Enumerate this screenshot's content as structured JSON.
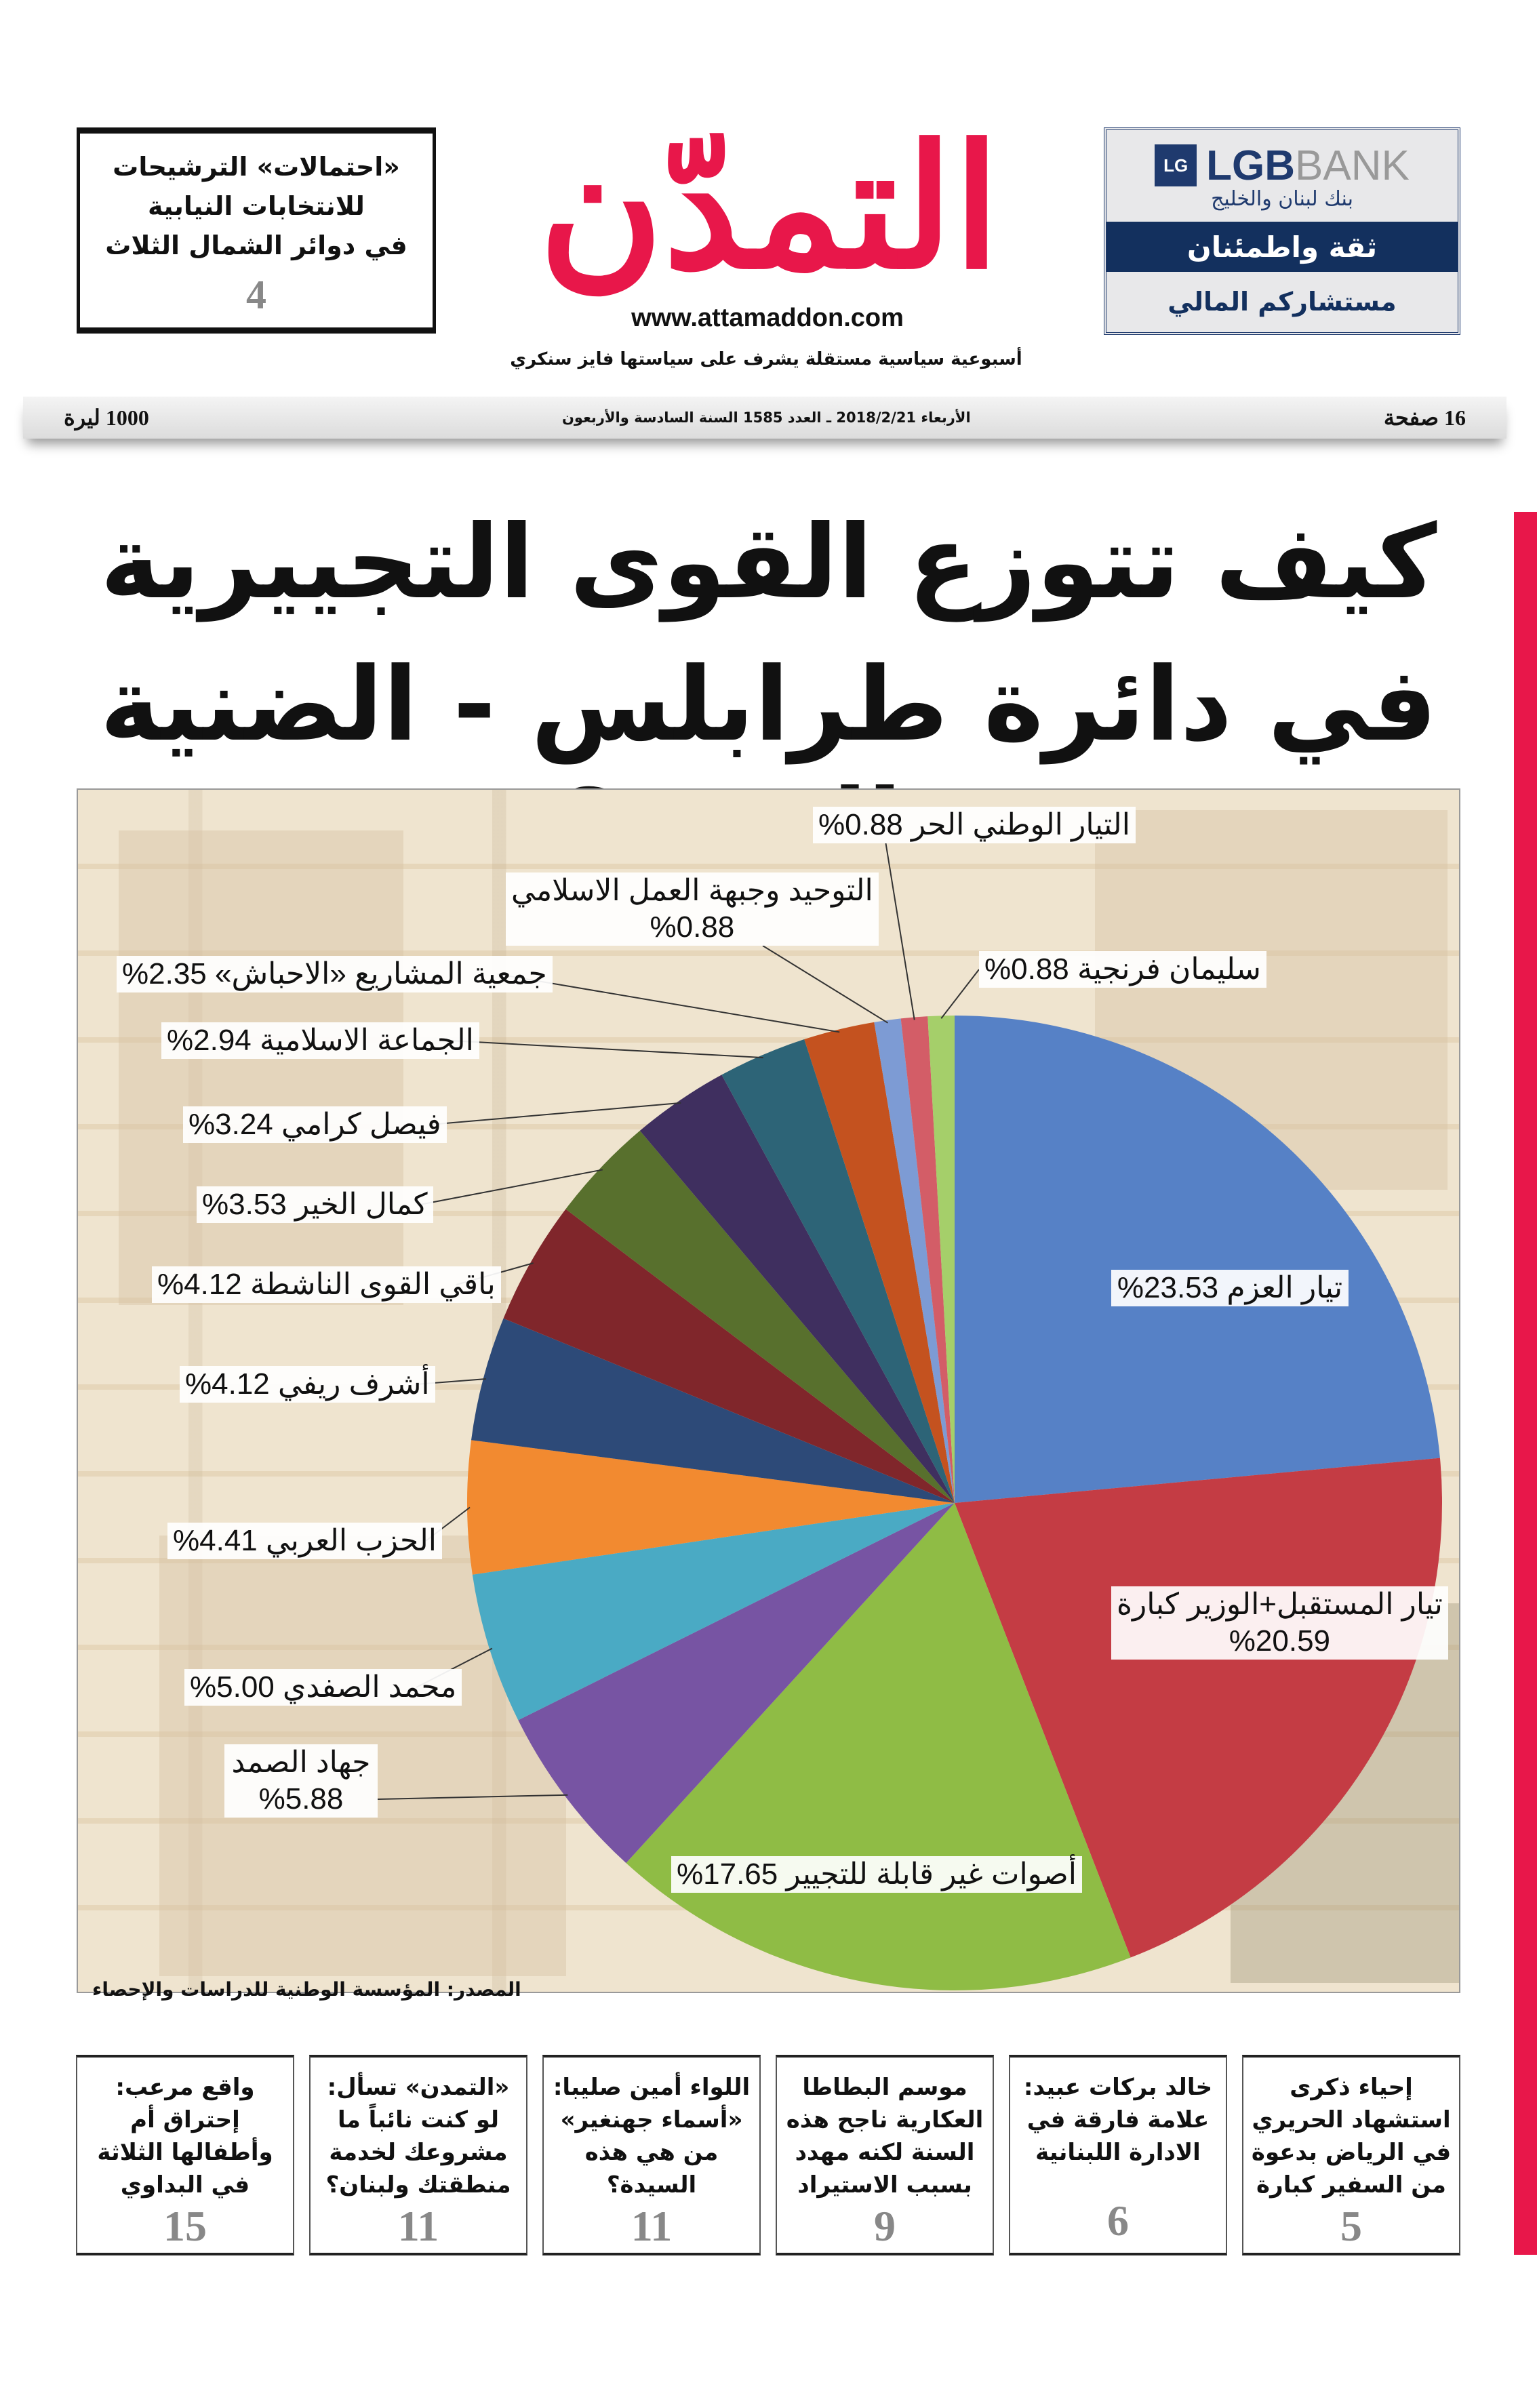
{
  "masthead": {
    "logo_text": "التمدّن",
    "url": "www.attamaddon.com",
    "tagline": "أسبوعية سياسية مستقلة يشرف على سياستها فايز سنكري",
    "logo_color": "#e8174a"
  },
  "teaser": {
    "lines": [
      "«احتمالات» الترشيحات",
      "للانتخابات النيابية",
      "في دوائر الشمال الثلاث"
    ],
    "page": "4"
  },
  "bank_ad": {
    "logo_mark": "LG",
    "brand_lgb": "LGB",
    "brand_bank": "BANK",
    "brand_arabic": "بنك لبنان والخليج",
    "slogan": "ثقة واطمئنان",
    "subslogan": "مستشاركم المالي"
  },
  "datebar": {
    "price": "1000 ليرة",
    "issue_info": "الأربعاء 2018/2/21 ـ العدد 1585 السنة السادسة والأربعون",
    "pages": "16 صفحة"
  },
  "headline": {
    "line1": "كيف تتوزع القوى التجييرية",
    "line2": "في دائرة طرابلس - الضنية - المنية؟"
  },
  "chart_data": {
    "type": "pie",
    "title": "كيف تتوزع القوى التجييرية في دائرة طرابلس - الضنية - المنية؟",
    "source": "المصدر: المؤسسة الوطنية للدراسات والإحصاء",
    "start": "top",
    "direction": "clockwise",
    "slices": [
      {
        "name": "تيار العزم",
        "value": 23.53,
        "value_label": "%23.53",
        "color": "#5681c6"
      },
      {
        "name": "تيار المستقبل+الوزير كبارة",
        "value": 20.59,
        "value_label": "%20.59",
        "color": "#c43c44"
      },
      {
        "name": "أصوات غير قابلة للتجيير",
        "value": 17.65,
        "value_label": "%17.65",
        "color": "#8fbc45"
      },
      {
        "name": "جهاد الصمد",
        "value": 5.88,
        "value_label": "%5.88",
        "color": "#7754a3"
      },
      {
        "name": "محمد الصفدي",
        "value": 5.0,
        "value_label": "%5.00",
        "color": "#4aaac4"
      },
      {
        "name": "الحزب العربي",
        "value": 4.41,
        "value_label": "%4.41",
        "color": "#f28a30"
      },
      {
        "name": "أشرف ريفي",
        "value": 4.12,
        "value_label": "%4.12",
        "color": "#2d4a78"
      },
      {
        "name": "باقي القوى الناشطة",
        "value": 4.12,
        "value_label": "%4.12",
        "color": "#80262b"
      },
      {
        "name": "كمال الخير",
        "value": 3.53,
        "value_label": "%3.53",
        "color": "#58702d"
      },
      {
        "name": "فيصل كرامي",
        "value": 3.24,
        "value_label": "%3.24",
        "color": "#3f2f5f"
      },
      {
        "name": "الجماعة الاسلامية",
        "value": 2.94,
        "value_label": "%2.94",
        "color": "#2d6477"
      },
      {
        "name": "جمعية المشاريع «الاحباش»",
        "value": 2.35,
        "value_label": "%2.35",
        "color": "#c4521f"
      },
      {
        "name": "التوحيد وجبهة العمل الاسلامي",
        "value": 0.88,
        "value_label": "%0.88",
        "color": "#7d9bd4"
      },
      {
        "name": "التيار الوطني الحر",
        "value": 0.88,
        "value_label": "%0.88",
        "color": "#d35d67"
      },
      {
        "name": "سليمان فرنجية",
        "value": 0.88,
        "value_label": "%0.88",
        "color": "#a5cf6a"
      }
    ]
  },
  "bottom_teasers": [
    {
      "text": "إحياء ذكرى استشهاد الحريري في الرياض بدعوة من السفير كبارة",
      "page": "5"
    },
    {
      "text": "خالد بركات عبيد: علامة فارقة في الادارة اللبنانية",
      "page": "6"
    },
    {
      "text": "موسم البطاطا العكارية ناجح هذه السنة لكنه مهدد بسبب الاستيراد",
      "page": "9"
    },
    {
      "text": "اللواء أمين صليبا: «أسماء جهنغير» من هي هذه السيدة؟",
      "page": "11"
    },
    {
      "text": "«التمدن» تسأل: لو كنت نائباً ما مشروعك لخدمة منطقتك ولبنان؟",
      "page": "11"
    },
    {
      "text": "واقع مرعب: إحتراق أم وأطفالها الثلاثة في البداوي",
      "page": "15"
    }
  ]
}
